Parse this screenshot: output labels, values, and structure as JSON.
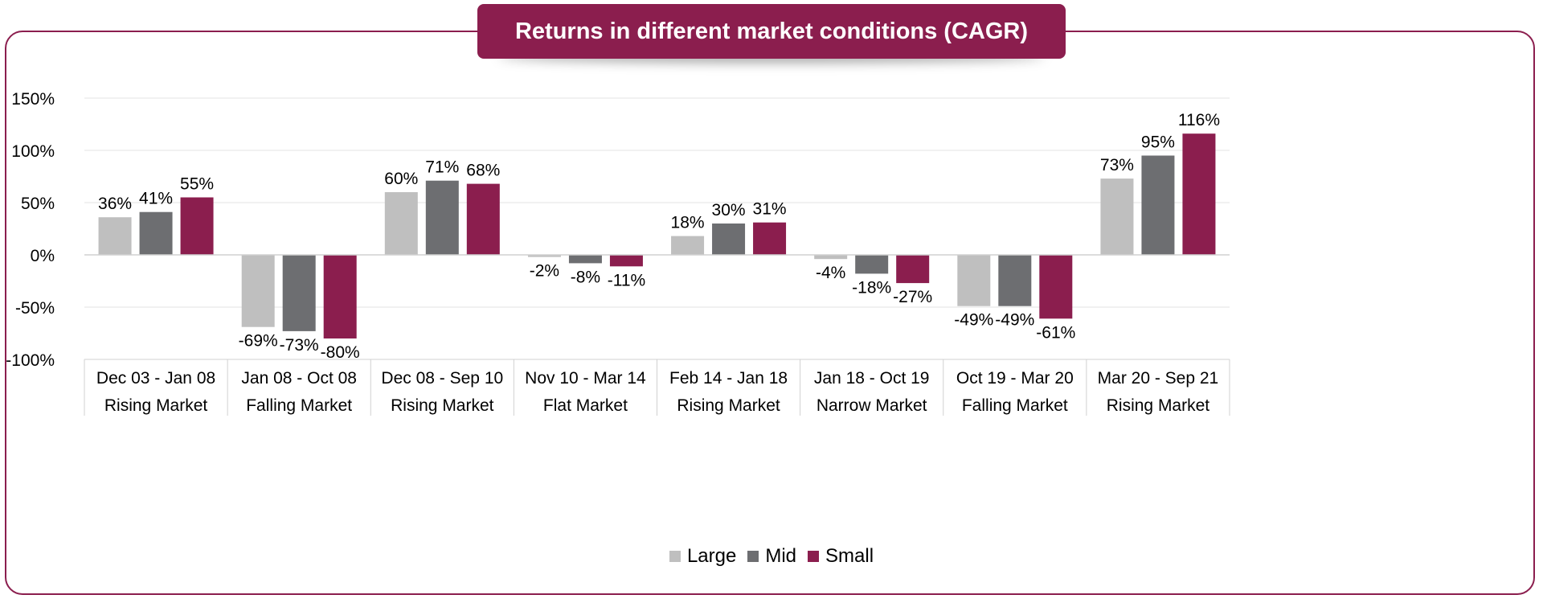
{
  "chart_data": {
    "type": "bar",
    "title": "Returns in different market conditions (CAGR)",
    "categories": [
      {
        "period": "Dec 03 - Jan 08",
        "condition": "Rising Market"
      },
      {
        "period": "Jan 08 - Oct 08",
        "condition": "Falling Market"
      },
      {
        "period": "Dec 08 - Sep 10",
        "condition": "Rising Market"
      },
      {
        "period": "Nov 10 - Mar 14",
        "condition": "Flat Market"
      },
      {
        "period": "Feb 14 - Jan 18",
        "condition": "Rising Market"
      },
      {
        "period": "Jan 18 - Oct 19",
        "condition": "Narrow Market"
      },
      {
        "period": "Oct 19 - Mar 20",
        "condition": "Falling Market"
      },
      {
        "period": "Mar 20 - Sep 21",
        "condition": "Rising Market"
      }
    ],
    "series": [
      {
        "name": "Large",
        "color": "#bfbfbf",
        "values": [
          36,
          -69,
          60,
          -2,
          18,
          -4,
          -49,
          73
        ]
      },
      {
        "name": "Mid",
        "color": "#6d6e71",
        "values": [
          41,
          -73,
          71,
          -8,
          30,
          -18,
          -49,
          95
        ]
      },
      {
        "name": "Small",
        "color": "#8b1e4e",
        "values": [
          55,
          -80,
          68,
          -11,
          31,
          -27,
          -61,
          116
        ]
      }
    ],
    "ylim": [
      -100,
      150
    ],
    "yticks": [
      150,
      100,
      50,
      0,
      -50,
      -100
    ],
    "tick_suffix": "%",
    "value_suffix": "%",
    "grid": true,
    "legend_position": "bottom-center"
  },
  "colors": {
    "accent": "#8b1e4e",
    "grid": "#e3e3e3",
    "axis": "#d0d0d0"
  }
}
